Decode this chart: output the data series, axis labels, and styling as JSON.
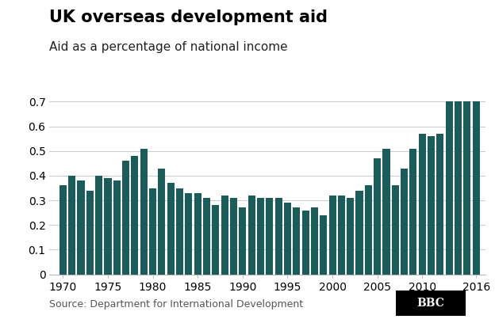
{
  "title": "UK overseas development aid",
  "subtitle": "Aid as a percentage of national income",
  "source": "Source: Department for International Development",
  "bar_color": "#1a5c5a",
  "background_color": "#ffffff",
  "years": [
    1970,
    1971,
    1972,
    1973,
    1974,
    1975,
    1976,
    1977,
    1978,
    1979,
    1980,
    1981,
    1982,
    1983,
    1984,
    1985,
    1986,
    1987,
    1988,
    1989,
    1990,
    1991,
    1992,
    1993,
    1994,
    1995,
    1996,
    1997,
    1998,
    1999,
    2000,
    2001,
    2002,
    2003,
    2004,
    2005,
    2006,
    2007,
    2008,
    2009,
    2010,
    2011,
    2012,
    2013,
    2014,
    2015,
    2016
  ],
  "values": [
    0.36,
    0.4,
    0.38,
    0.34,
    0.4,
    0.39,
    0.38,
    0.46,
    0.48,
    0.51,
    0.35,
    0.43,
    0.37,
    0.35,
    0.33,
    0.33,
    0.31,
    0.28,
    0.32,
    0.31,
    0.27,
    0.32,
    0.31,
    0.31,
    0.31,
    0.29,
    0.27,
    0.26,
    0.27,
    0.24,
    0.32,
    0.32,
    0.31,
    0.34,
    0.36,
    0.47,
    0.51,
    0.36,
    0.43,
    0.51,
    0.57,
    0.56,
    0.57,
    0.7,
    0.7,
    0.7,
    0.7
  ],
  "ylim": [
    0,
    0.75
  ],
  "yticks": [
    0,
    0.1,
    0.2,
    0.3,
    0.4,
    0.5,
    0.6,
    0.7
  ],
  "xticks": [
    1970,
    1975,
    1980,
    1985,
    1990,
    1995,
    2000,
    2005,
    2010,
    2016
  ],
  "title_fontsize": 15,
  "subtitle_fontsize": 11,
  "source_fontsize": 9,
  "tick_fontsize": 10,
  "xlim": [
    1968.5,
    2017.0
  ]
}
